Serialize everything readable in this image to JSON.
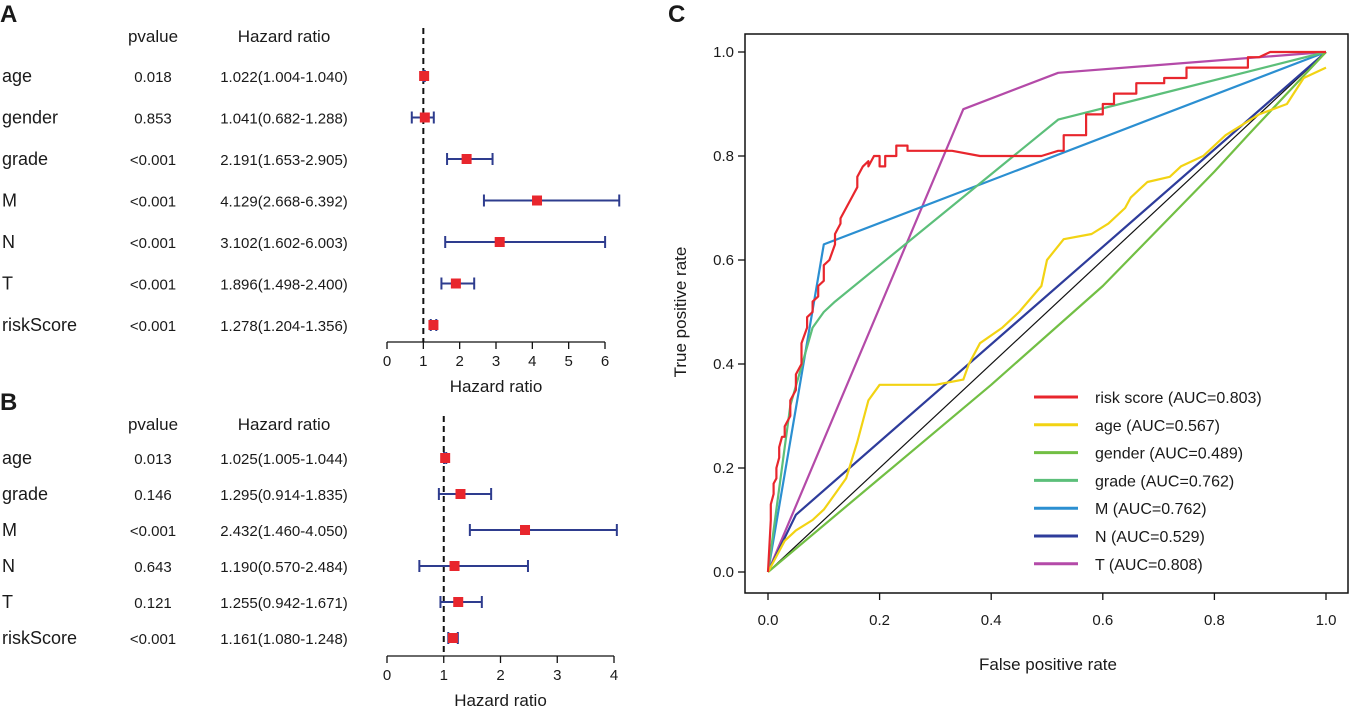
{
  "chart_data": [
    {
      "type": "forest",
      "panel": "A",
      "col_pvalue": "pvalue",
      "col_hr": "Hazard ratio",
      "xlabel": "Hazard ratio",
      "xlim": [
        0,
        6
      ],
      "ticks": [
        "0",
        "1",
        "2",
        "3",
        "4",
        "5",
        "6"
      ],
      "reference": 1,
      "rows": [
        {
          "name": "age",
          "pvalue": "0.018",
          "hr_text": "1.022(1.004-1.040)",
          "hr": 1.022,
          "lo": 1.004,
          "hi": 1.04
        },
        {
          "name": "gender",
          "pvalue": "0.853",
          "hr_text": "1.041(0.682-1.288)",
          "hr": 1.041,
          "lo": 0.682,
          "hi": 1.288
        },
        {
          "name": "grade",
          "pvalue": "<0.001",
          "hr_text": "2.191(1.653-2.905)",
          "hr": 2.191,
          "lo": 1.653,
          "hi": 2.905
        },
        {
          "name": "M",
          "pvalue": "<0.001",
          "hr_text": "4.129(2.668-6.392)",
          "hr": 4.129,
          "lo": 2.668,
          "hi": 6.392
        },
        {
          "name": "N",
          "pvalue": "<0.001",
          "hr_text": "3.102(1.602-6.003)",
          "hr": 3.102,
          "lo": 1.602,
          "hi": 6.003
        },
        {
          "name": "T",
          "pvalue": "<0.001",
          "hr_text": "1.896(1.498-2.400)",
          "hr": 1.896,
          "lo": 1.498,
          "hi": 2.4
        },
        {
          "name": "riskScore",
          "pvalue": "<0.001",
          "hr_text": "1.278(1.204-1.356)",
          "hr": 1.278,
          "lo": 1.204,
          "hi": 1.356
        }
      ]
    },
    {
      "type": "forest",
      "panel": "B",
      "col_pvalue": "pvalue",
      "col_hr": "Hazard ratio",
      "xlabel": "Hazard ratio",
      "xlim": [
        0,
        4
      ],
      "ticks": [
        "0",
        "1",
        "2",
        "3",
        "4"
      ],
      "reference": 1,
      "rows": [
        {
          "name": "age",
          "pvalue": "0.013",
          "hr_text": "1.025(1.005-1.044)",
          "hr": 1.025,
          "lo": 1.005,
          "hi": 1.044
        },
        {
          "name": "grade",
          "pvalue": "0.146",
          "hr_text": "1.295(0.914-1.835)",
          "hr": 1.295,
          "lo": 0.914,
          "hi": 1.835
        },
        {
          "name": "M",
          "pvalue": "<0.001",
          "hr_text": "2.432(1.460-4.050)",
          "hr": 2.432,
          "lo": 1.46,
          "hi": 4.05
        },
        {
          "name": "N",
          "pvalue": "0.643",
          "hr_text": "1.190(0.570-2.484)",
          "hr": 1.19,
          "lo": 0.57,
          "hi": 2.484
        },
        {
          "name": "T",
          "pvalue": "0.121",
          "hr_text": "1.255(0.942-1.671)",
          "hr": 1.255,
          "lo": 0.942,
          "hi": 1.671
        },
        {
          "name": "riskScore",
          "pvalue": "<0.001",
          "hr_text": "1.161(1.080-1.248)",
          "hr": 1.161,
          "lo": 1.08,
          "hi": 1.248
        }
      ]
    },
    {
      "type": "line",
      "panel": "C",
      "xlabel": "False positive rate",
      "ylabel": "True positive rate",
      "xlim": [
        0,
        1
      ],
      "ylim": [
        0,
        1
      ],
      "xticks": [
        "0.0",
        "0.2",
        "0.4",
        "0.6",
        "0.8",
        "1.0"
      ],
      "yticks": [
        "0.0",
        "0.2",
        "0.4",
        "0.6",
        "0.8",
        "1.0"
      ],
      "legend_position": "bottom-right",
      "series": [
        {
          "name": "risk score (AUC=0.803)",
          "color": "#e8262d",
          "x": [
            0,
            0.005,
            0.005,
            0.01,
            0.01,
            0.015,
            0.015,
            0.02,
            0.02,
            0.025,
            0.03,
            0.03,
            0.04,
            0.04,
            0.05,
            0.05,
            0.06,
            0.06,
            0.07,
            0.07,
            0.08,
            0.08,
            0.09,
            0.09,
            0.1,
            0.1,
            0.11,
            0.12,
            0.12,
            0.13,
            0.13,
            0.14,
            0.14,
            0.15,
            0.15,
            0.16,
            0.16,
            0.17,
            0.18,
            0.18,
            0.19,
            0.2,
            0.2,
            0.21,
            0.21,
            0.23,
            0.23,
            0.25,
            0.25,
            0.27,
            0.27,
            0.33,
            0.38,
            0.43,
            0.48,
            0.49,
            0.52,
            0.53,
            0.53,
            0.57,
            0.57,
            0.6,
            0.6,
            0.62,
            0.62,
            0.66,
            0.66,
            0.71,
            0.71,
            0.75,
            0.75,
            0.78,
            0.8,
            0.83,
            0.86,
            0.86,
            0.88,
            0.9,
            0.92,
            0.94,
            0.96,
            1.0
          ],
          "y": [
            0,
            0.1,
            0.13,
            0.15,
            0.17,
            0.18,
            0.2,
            0.22,
            0.24,
            0.26,
            0.26,
            0.28,
            0.3,
            0.33,
            0.35,
            0.38,
            0.4,
            0.44,
            0.47,
            0.49,
            0.5,
            0.52,
            0.53,
            0.55,
            0.56,
            0.59,
            0.6,
            0.63,
            0.65,
            0.67,
            0.68,
            0.7,
            0.7,
            0.72,
            0.72,
            0.74,
            0.76,
            0.78,
            0.79,
            0.78,
            0.8,
            0.8,
            0.78,
            0.78,
            0.8,
            0.8,
            0.82,
            0.82,
            0.81,
            0.81,
            0.81,
            0.81,
            0.8,
            0.8,
            0.8,
            0.8,
            0.81,
            0.81,
            0.84,
            0.84,
            0.88,
            0.88,
            0.9,
            0.9,
            0.92,
            0.92,
            0.94,
            0.94,
            0.95,
            0.95,
            0.97,
            0.97,
            0.97,
            0.97,
            0.97,
            0.99,
            0.99,
            1.0,
            1.0,
            1.0,
            1.0,
            1.0
          ]
        },
        {
          "name": "age (AUC=0.567)",
          "color": "#f2d313",
          "x": [
            0,
            0.03,
            0.05,
            0.08,
            0.1,
            0.12,
            0.14,
            0.16,
            0.18,
            0.2,
            0.25,
            0.3,
            0.35,
            0.36,
            0.38,
            0.42,
            0.45,
            0.49,
            0.5,
            0.53,
            0.58,
            0.61,
            0.64,
            0.65,
            0.68,
            0.72,
            0.74,
            0.78,
            0.82,
            0.85,
            0.88,
            0.93,
            0.96,
            1.0
          ],
          "y": [
            0,
            0.06,
            0.08,
            0.1,
            0.12,
            0.15,
            0.18,
            0.25,
            0.33,
            0.36,
            0.36,
            0.36,
            0.37,
            0.4,
            0.44,
            0.47,
            0.5,
            0.55,
            0.6,
            0.64,
            0.65,
            0.67,
            0.7,
            0.72,
            0.75,
            0.76,
            0.78,
            0.8,
            0.84,
            0.86,
            0.88,
            0.9,
            0.95,
            0.97
          ]
        },
        {
          "name": "gender (AUC=0.489)",
          "color": "#72bf44",
          "x": [
            0,
            0.2,
            0.4,
            0.6,
            0.8,
            0.86,
            1.0
          ],
          "y": [
            0,
            0.18,
            0.36,
            0.55,
            0.77,
            0.84,
            1.0
          ]
        },
        {
          "name": "grade (AUC=0.762)",
          "color": "#5cbf7a",
          "x": [
            0,
            0.04,
            0.08,
            0.1,
            0.12,
            0.52,
            1.0
          ],
          "y": [
            0,
            0.32,
            0.47,
            0.5,
            0.52,
            0.87,
            1.0
          ]
        },
        {
          "name": "M (AUC=0.762)",
          "color": "#2b8fd1",
          "x": [
            0,
            0.1,
            1.0
          ],
          "y": [
            0,
            0.63,
            1.0
          ]
        },
        {
          "name": "N (AUC=0.529)",
          "color": "#2e3c9b",
          "x": [
            0,
            0.05,
            1.0
          ],
          "y": [
            0,
            0.11,
            1.0
          ]
        },
        {
          "name": "T (AUC=0.808)",
          "color": "#b44aa8",
          "x": [
            0,
            0.35,
            0.52,
            1.0
          ],
          "y": [
            0,
            0.89,
            0.96,
            1.0
          ]
        }
      ]
    }
  ]
}
